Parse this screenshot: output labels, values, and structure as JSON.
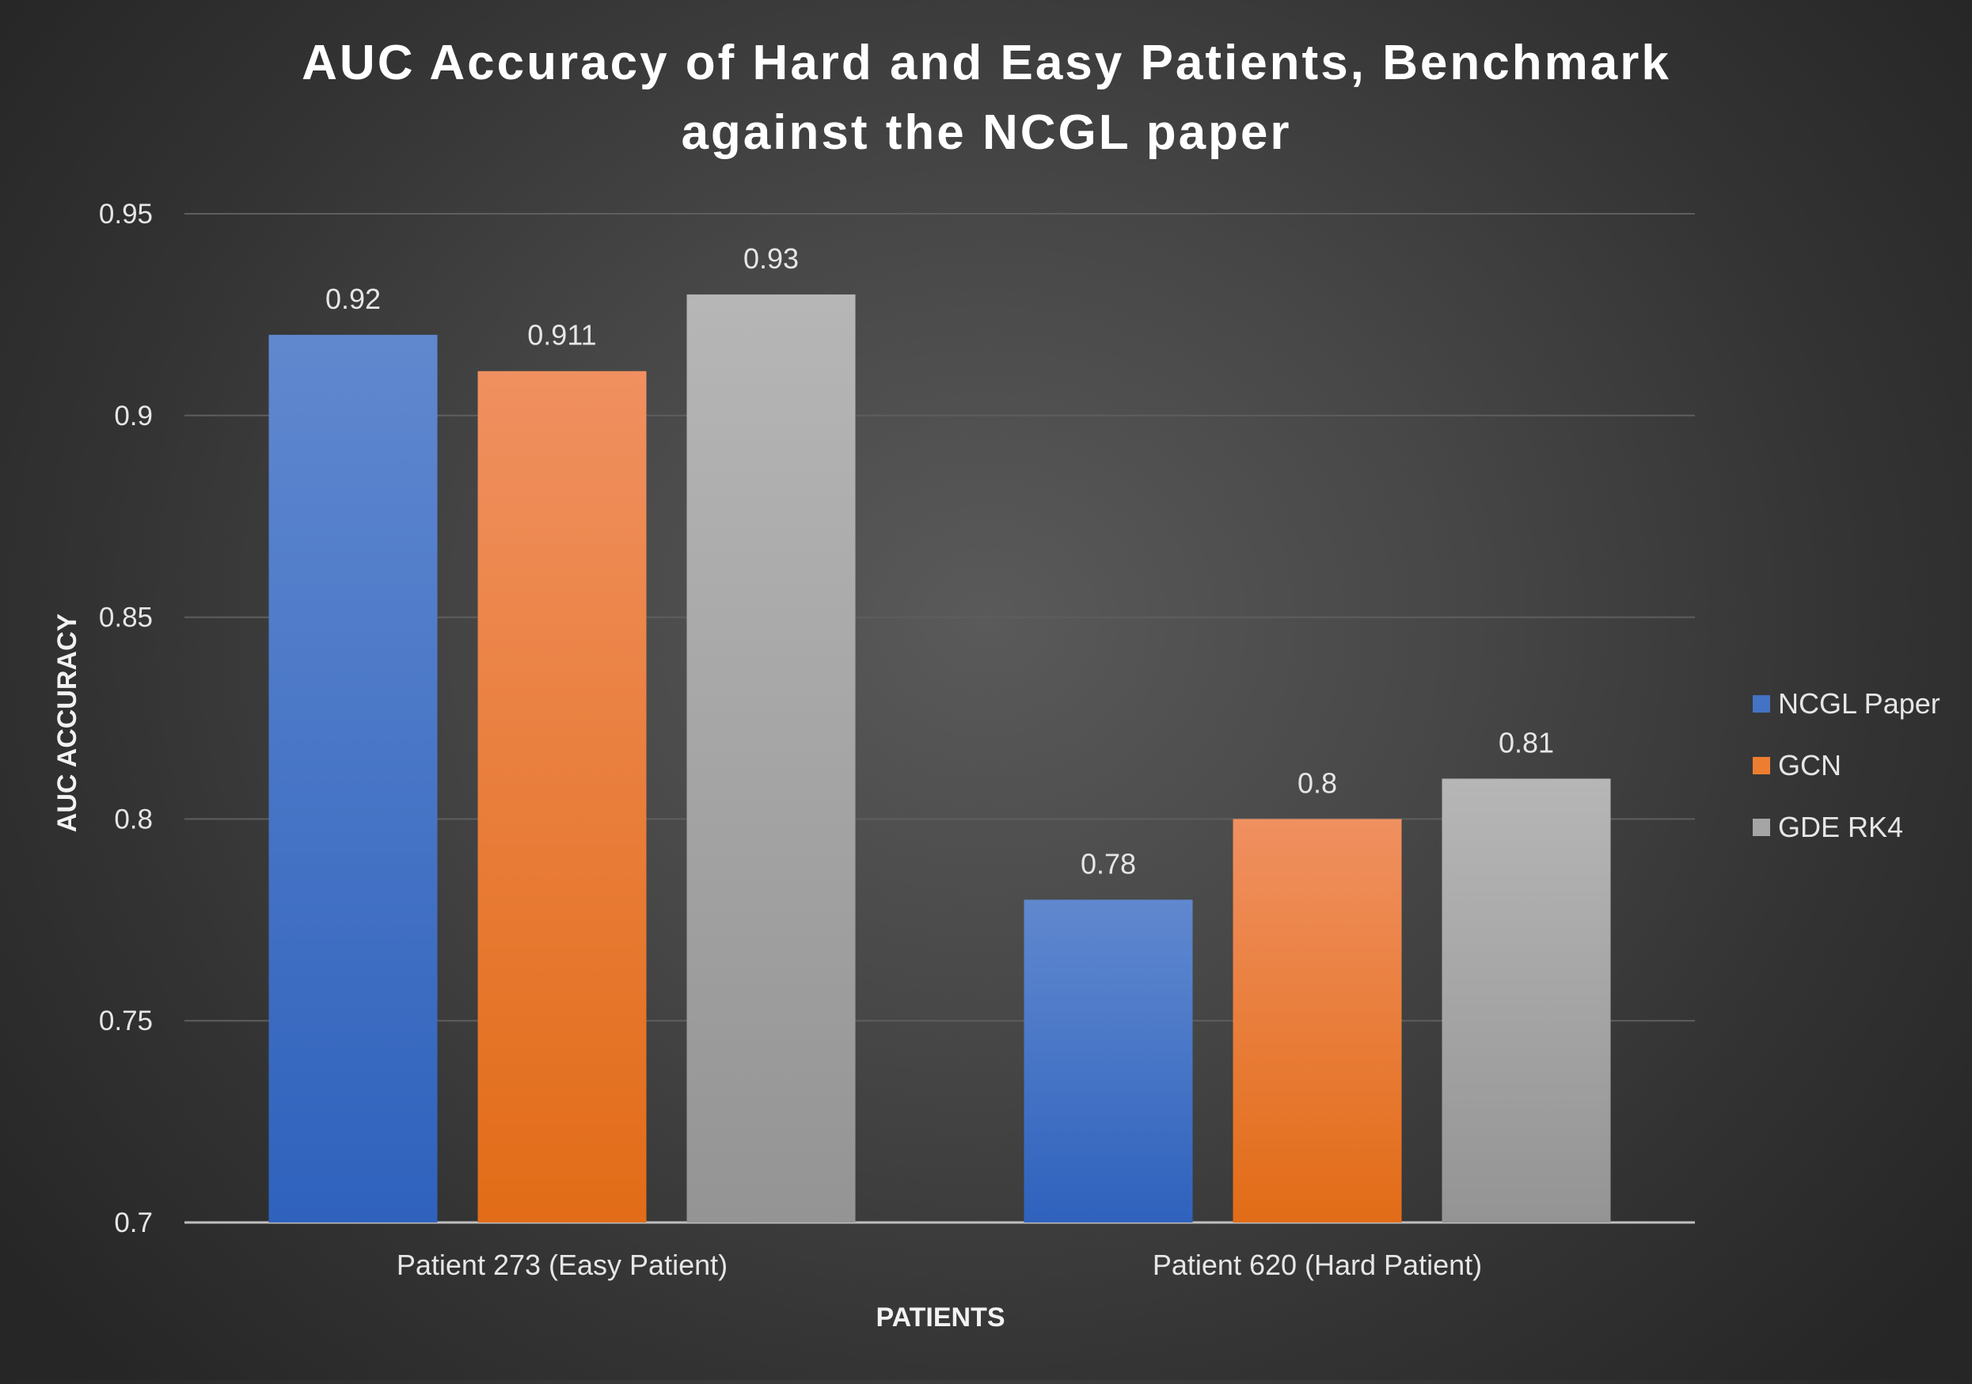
{
  "chart_data": {
    "type": "bar",
    "title": "AUC Accuracy of Hard and Easy Patients, Benchmark against the NCGL paper",
    "title_lines": [
      "AUC Accuracy of Hard and Easy Patients, Benchmark",
      "against the NCGL paper"
    ],
    "xlabel": "PATIENTS",
    "ylabel": "AUC ACCURACY",
    "ylim": [
      0.7,
      0.95
    ],
    "yticks": [
      "0.7",
      "0.75",
      "0.8",
      "0.85",
      "0.9",
      "0.95"
    ],
    "grid": true,
    "legend_position": "right",
    "categories": [
      "Patient 273 (Easy Patient)",
      "Patient 620 (Hard Patient)"
    ],
    "series": [
      {
        "name": "NCGL Paper",
        "values": [
          0.92,
          0.78
        ],
        "labels": [
          "0.92",
          "0.78"
        ],
        "color": "#4472c4"
      },
      {
        "name": "GCN",
        "values": [
          0.911,
          0.8
        ],
        "labels": [
          "0.911",
          "0.8"
        ],
        "color": "#ed7d31"
      },
      {
        "name": "GDE RK4",
        "values": [
          0.93,
          0.81
        ],
        "labels": [
          "0.93",
          "0.81"
        ],
        "color": "#a5a5a5"
      }
    ]
  }
}
